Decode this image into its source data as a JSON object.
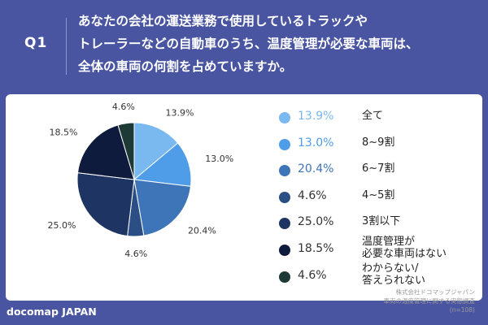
{
  "question": {
    "label": "Q1",
    "lines": [
      "あなたの会社の運送業務で使用しているトラックや",
      "トレーラーなどの自動車のうち、温度管理が必要な車両は、",
      "全体の車両の何割を占めていますか。"
    ]
  },
  "chart_data": {
    "type": "pie",
    "categories": [
      "全て",
      "8~9割",
      "6~7割",
      "4~5割",
      "3割以下",
      "温度管理が必要な車両はない",
      "わからない/答えられない"
    ],
    "legend_labels": [
      [
        "全て"
      ],
      [
        "8~9割"
      ],
      [
        "6~7割"
      ],
      [
        "4~5割"
      ],
      [
        "3割以下"
      ],
      [
        "温度管理が",
        "必要な車両はない"
      ],
      [
        "わからない/",
        "答えられない"
      ]
    ],
    "values": [
      13.9,
      13.0,
      20.4,
      4.6,
      25.0,
      18.5,
      4.6
    ],
    "value_labels": [
      "13.9%",
      "13.0%",
      "20.4%",
      "4.6%",
      "25.0%",
      "18.5%",
      "4.6%"
    ],
    "pie_labels": [
      "13.9%",
      "13.0%",
      "20.4%",
      "4.6%",
      "25.0%",
      "18.5%",
      "4.6%"
    ],
    "colors": [
      "#7ab8f0",
      "#4f9de8",
      "#3e74b8",
      "#2b4f84",
      "#1e3563",
      "#0f1b3c",
      "#1e3a36"
    ],
    "legend_position": "right"
  },
  "footer": {
    "brand": "docomap JAPAN",
    "source_lines": [
      "株式会社ドコマップジャパン",
      "車両の温度管理に関する実態調査",
      "(n=108)"
    ]
  }
}
